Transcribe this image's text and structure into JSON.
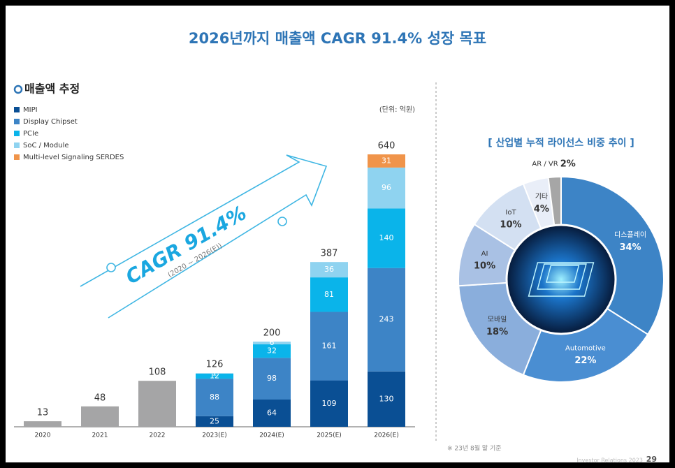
{
  "header": {
    "title": "2026년까지 매출액 CAGR 91.4% 성장 목표"
  },
  "chart_data": [
    {
      "type": "bar",
      "stacked": true,
      "title": "매출액 추정",
      "unit": "(단위: 억원)",
      "annotations": [
        "CAGR 91.4%",
        "(2020 ~ 2026(E))"
      ],
      "categories": [
        "2020",
        "2021",
        "2022",
        "2023(E)",
        "2024(E)",
        "2025(E)",
        "2026(E)"
      ],
      "series": [
        {
          "color": "#a5a5a6",
          "values": [
            13,
            48,
            108,
            null,
            null,
            null,
            null
          ]
        },
        {
          "name": "MIPI",
          "color": "#0a4f94",
          "values": [
            null,
            null,
            null,
            25,
            64,
            109,
            130
          ]
        },
        {
          "name": "Display Chipset",
          "color": "#3d84c6",
          "values": [
            null,
            null,
            null,
            88,
            98,
            161,
            243
          ]
        },
        {
          "name": "PCIe",
          "color": "#0ab4ea",
          "values": [
            null,
            null,
            null,
            12,
            32,
            81,
            140
          ]
        },
        {
          "name": "SoC / Module",
          "color": "#8fd3f0",
          "values": [
            null,
            null,
            null,
            1,
            6,
            36,
            96
          ]
        },
        {
          "name": "Multi-level Signaling SERDES",
          "color": "#f0944a",
          "values": [
            null,
            null,
            null,
            null,
            null,
            null,
            31
          ]
        }
      ],
      "totals": [
        null,
        null,
        null,
        126,
        200,
        387,
        640
      ]
    },
    {
      "type": "pie",
      "title": "[ 산업별 누적 라이선스 비중 추이 ]",
      "note": "※ 23년 8월 말 기준",
      "categories": [
        "디스플레이",
        "Automotive",
        "모바일",
        "AI",
        "IoT",
        "기타",
        "AR / VR"
      ],
      "values": [
        34,
        22,
        18,
        10,
        10,
        4,
        2
      ],
      "value_labels": [
        "34%",
        "22%",
        "18%",
        "10%",
        "10%",
        "4%",
        "2%"
      ],
      "colors": [
        "#3d84c6",
        "#4a8ed2",
        "#8aaedc",
        "#a9c1e4",
        "#d3e0f2",
        "#e9eef8",
        "#a6a6a6"
      ]
    }
  ],
  "footer": {
    "text": "Investor Relations 2023",
    "page": "29"
  }
}
